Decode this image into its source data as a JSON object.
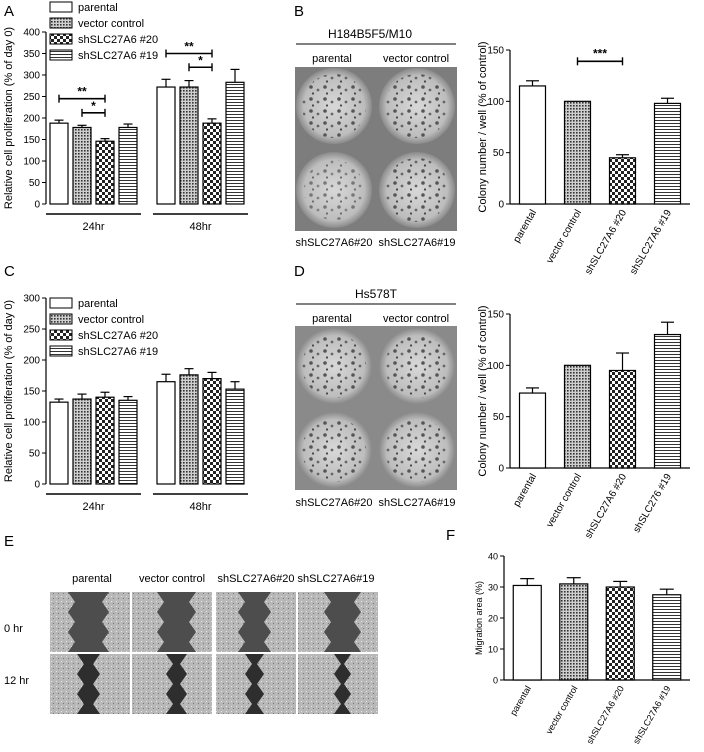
{
  "panels": {
    "A": {
      "letter": "A"
    },
    "B": {
      "letter": "B"
    },
    "C": {
      "letter": "C"
    },
    "D": {
      "letter": "D"
    },
    "E": {
      "letter": "E"
    },
    "F": {
      "letter": "F"
    }
  },
  "colony_B": {
    "title": "H184B5F5/M10",
    "top_left": "parental",
    "top_right": "vector control",
    "bottom_left": "shSLC27A6#20",
    "bottom_right": "shSLC27A6#19"
  },
  "colony_D": {
    "title": "Hs578T",
    "top_left": "parental",
    "top_right": "vector control",
    "bottom_left": "shSLC27A6#20",
    "bottom_right": "shSLC27A6#19"
  },
  "wound_E": {
    "columns": [
      "parental",
      "vector control",
      "shSLC27A6#20",
      "shSLC27A6#19"
    ],
    "rows": [
      "0 hr",
      "12 hr"
    ]
  },
  "chart_data": [
    {
      "panel": "A",
      "type": "bar",
      "ylabel": "Relative cell proliferation (% of day 0)",
      "ylim": [
        0,
        400
      ],
      "yticks": [
        0,
        50,
        100,
        150,
        200,
        250,
        300,
        350,
        400
      ],
      "groups": [
        "24hr",
        "48hr"
      ],
      "series": [
        {
          "name": "parental",
          "values": [
            188,
            272
          ],
          "errors": [
            7,
            18
          ],
          "pattern": "white"
        },
        {
          "name": "vector control",
          "values": [
            178,
            272
          ],
          "errors": [
            5,
            15
          ],
          "pattern": "dots"
        },
        {
          "name": "shSLC27A6 #20",
          "values": [
            146,
            188
          ],
          "errors": [
            6,
            10
          ],
          "pattern": "check"
        },
        {
          "name": "shSLC27A6 #19",
          "values": [
            178,
            283
          ],
          "errors": [
            8,
            30
          ],
          "pattern": "hlines"
        }
      ],
      "annotations": [
        "**",
        "*",
        "**",
        "*"
      ]
    },
    {
      "panel": "B",
      "type": "bar",
      "ylabel": "Colony number / well (% of control)",
      "ylim": [
        0,
        150
      ],
      "yticks": [
        0,
        50,
        100,
        150
      ],
      "categories": [
        "parental",
        "vector control",
        "shSLC27A6 #20",
        "shSLC27A6 #19"
      ],
      "values": [
        115,
        100,
        45,
        98
      ],
      "errors": [
        5,
        0,
        3,
        5
      ],
      "patterns": [
        "white",
        "dots",
        "check",
        "hlines"
      ],
      "annotations": [
        "***"
      ]
    },
    {
      "panel": "C",
      "type": "bar",
      "ylabel": "Relative cell proliferation (% of day 0)",
      "ylim": [
        0,
        300
      ],
      "yticks": [
        0,
        50,
        100,
        150,
        200,
        250,
        300
      ],
      "groups": [
        "24hr",
        "48hr"
      ],
      "series": [
        {
          "name": "parental",
          "values": [
            132,
            165
          ],
          "errors": [
            5,
            12
          ],
          "pattern": "white"
        },
        {
          "name": "vector control",
          "values": [
            137,
            176
          ],
          "errors": [
            8,
            10
          ],
          "pattern": "dots"
        },
        {
          "name": "shSLC27A6 #20",
          "values": [
            140,
            170
          ],
          "errors": [
            8,
            10
          ],
          "pattern": "check"
        },
        {
          "name": "shSLC27A6 #19",
          "values": [
            135,
            153
          ],
          "errors": [
            6,
            12
          ],
          "pattern": "hlines"
        }
      ]
    },
    {
      "panel": "D",
      "type": "bar",
      "ylabel": "Colony number / well (% of control)",
      "ylim": [
        0,
        150
      ],
      "yticks": [
        0,
        50,
        100,
        150
      ],
      "categories": [
        "parental",
        "vector control",
        "shSLC27A6 #20",
        "shSLC276 #19"
      ],
      "values": [
        73,
        100,
        95,
        130
      ],
      "errors": [
        5,
        0,
        17,
        12
      ],
      "patterns": [
        "white",
        "dots",
        "check",
        "hlines"
      ]
    },
    {
      "panel": "F",
      "type": "bar",
      "ylabel": "Migration area (%)",
      "ylim": [
        0,
        40
      ],
      "yticks": [
        0,
        10,
        20,
        30,
        40
      ],
      "categories": [
        "parental",
        "vector control",
        "shSLC27A6 #20",
        "shSLC27A6 #19"
      ],
      "values": [
        30.5,
        31,
        30,
        27.5
      ],
      "errors": [
        2.2,
        2,
        1.8,
        1.8
      ],
      "patterns": [
        "white",
        "dots",
        "check",
        "hlines"
      ]
    }
  ]
}
